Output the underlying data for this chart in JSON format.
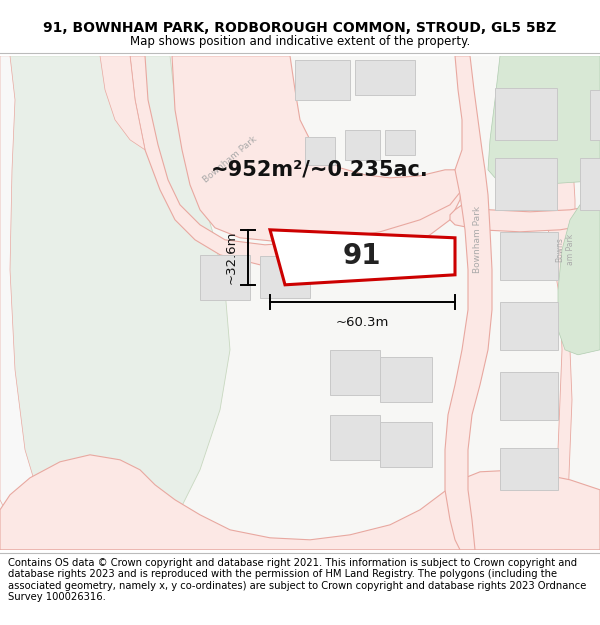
{
  "title": "91, BOWNHAM PARK, RODBOROUGH COMMON, STROUD, GL5 5BZ",
  "subtitle": "Map shows position and indicative extent of the property.",
  "footer": "Contains OS data © Crown copyright and database right 2021. This information is subject to Crown copyright and database rights 2023 and is reproduced with the permission of HM Land Registry. The polygons (including the associated geometry, namely x, y co-ordinates) are subject to Crown copyright and database rights 2023 Ordnance Survey 100026316.",
  "area_label": "~952m²/~0.235ac.",
  "width_label": "~60.3m",
  "height_label": "~32.6m",
  "plot_number": "91",
  "map_bg": "#f7f7f5",
  "road_color": "#e8a8a0",
  "road_fill": "#fce8e5",
  "green_light": "#e8efe8",
  "green_mid": "#d8e8d5",
  "green_dark": "#c8ddc5",
  "plot_outline": "#cc0000",
  "plot_fill": "#ffffff",
  "block_fill": "#e2e2e2",
  "block_edge": "#c8c8c8",
  "title_fontsize": 10,
  "subtitle_fontsize": 8.5,
  "footer_fontsize": 7.2
}
